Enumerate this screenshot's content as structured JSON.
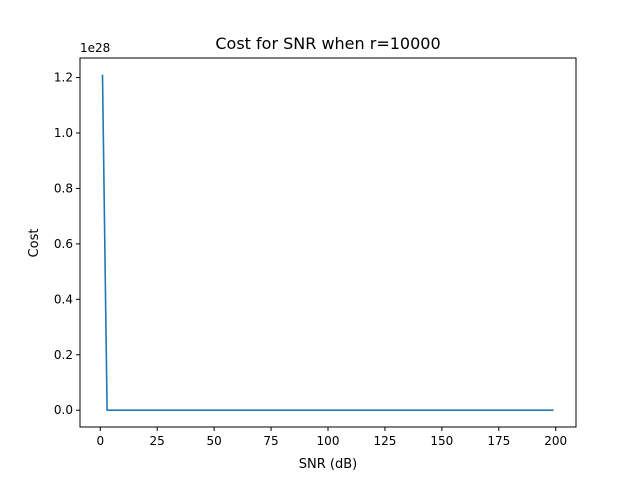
{
  "chart_data": {
    "type": "line",
    "title": "Cost for SNR when r=10000",
    "xlabel": "SNR (dB)",
    "ylabel": "Cost",
    "y_offset_label": "1e28",
    "xlim": [
      -8.9,
      208.9
    ],
    "ylim": [
      -0.0605,
      1.2705
    ],
    "xticks": [
      0,
      25,
      50,
      75,
      100,
      125,
      150,
      175,
      200
    ],
    "xtick_labels": [
      "0",
      "25",
      "50",
      "75",
      "100",
      "125",
      "150",
      "175",
      "200"
    ],
    "yticks": [
      0.0,
      0.2,
      0.4,
      0.6,
      0.8,
      1.0,
      1.2
    ],
    "ytick_labels": [
      "0.0",
      "0.2",
      "0.4",
      "0.6",
      "0.8",
      "1.0",
      "1.2"
    ],
    "grid": false,
    "series": [
      {
        "x": [
          1,
          2,
          3,
          199
        ],
        "y": [
          1.21,
          0.6,
          0.0,
          0.0
        ],
        "color": "#1f77b4"
      }
    ]
  }
}
